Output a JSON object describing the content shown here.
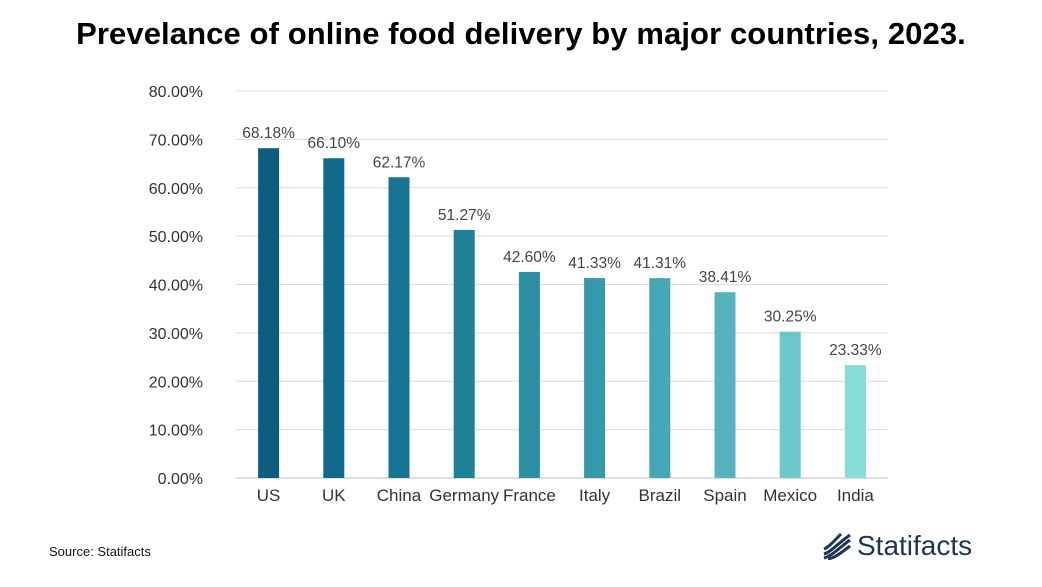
{
  "title": "Prevelance of online food delivery by major countries, 2023.",
  "footer": {
    "source": "Source: Statifacts",
    "brand": "Statifacts"
  },
  "chart_data": {
    "type": "bar",
    "title": "Prevelance of online food delivery by major countries, 2023.",
    "categories": [
      "US",
      "UK",
      "China",
      "Germany",
      "France",
      "Italy",
      "Brazil",
      "Spain",
      "Mexico",
      "India"
    ],
    "values": [
      68.18,
      66.1,
      62.17,
      51.27,
      42.6,
      41.33,
      41.31,
      38.41,
      30.25,
      23.33
    ],
    "value_labels": [
      "68.18%",
      "66.10%",
      "62.17%",
      "51.27%",
      "42.60%",
      "41.33%",
      "41.31%",
      "38.41%",
      "30.25%",
      "23.33%"
    ],
    "yticks": [
      "0.00%",
      "10.00%",
      "20.00%",
      "30.00%",
      "40.00%",
      "50.00%",
      "60.00%",
      "70.00%",
      "80.00%"
    ],
    "ylim": [
      0,
      80
    ],
    "xlabel": "",
    "ylabel": "",
    "grid": true,
    "colors": [
      "#0b5e80",
      "#0f6a8b",
      "#167594",
      "#1f8198",
      "#2a8ea5",
      "#3598ab",
      "#45a6b6",
      "#55b3bf",
      "#6dc6c9",
      "#86dcd7"
    ]
  }
}
